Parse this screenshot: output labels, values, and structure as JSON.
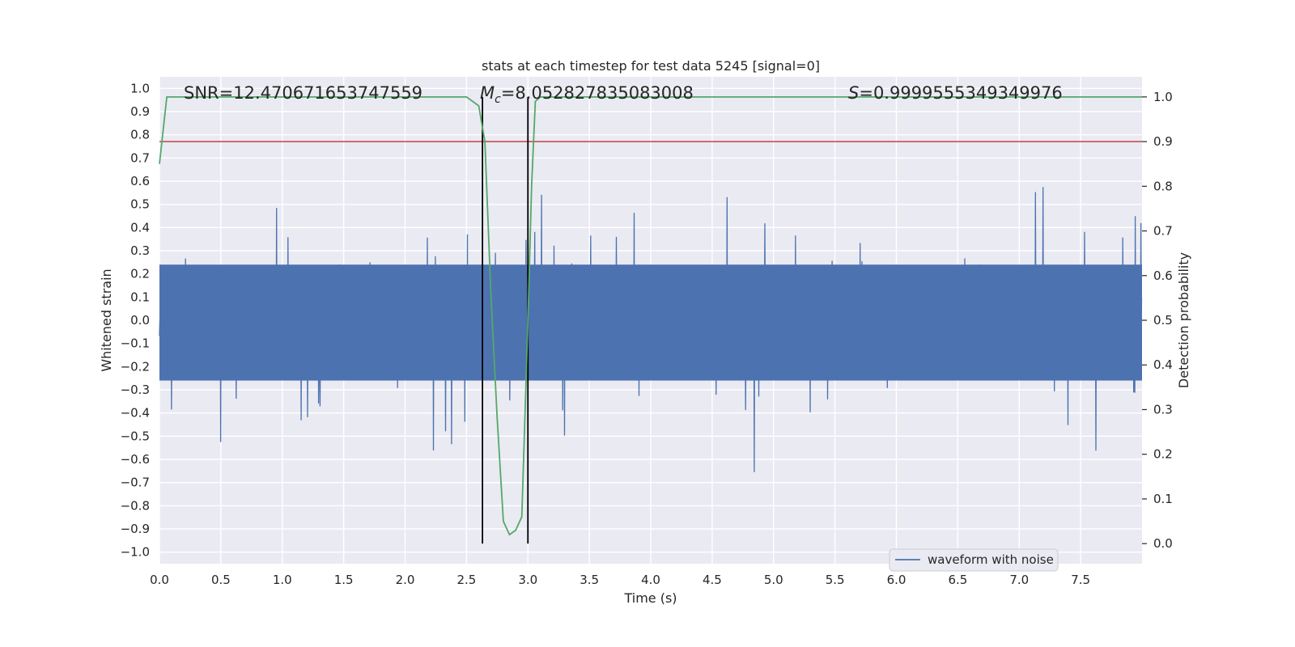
{
  "chart_data": {
    "type": "line",
    "title": "stats at each timestep for test data 5245 [signal=0]",
    "xlabel": "Time (s)",
    "ylabel": "Whitened strain",
    "y2label": "Detection probability",
    "xlim": [
      0.0,
      8.0
    ],
    "ylim": [
      -1.05,
      1.05
    ],
    "y2lim": [
      -0.045,
      1.045
    ],
    "x_ticks": [
      "0.0",
      "0.5",
      "1.0",
      "1.5",
      "2.0",
      "2.5",
      "3.0",
      "3.5",
      "4.0",
      "4.5",
      "5.0",
      "5.5",
      "6.0",
      "6.5",
      "7.0",
      "7.5"
    ],
    "y_ticks": [
      "-1.0",
      "-0.9",
      "-0.8",
      "-0.7",
      "-0.6",
      "-0.5",
      "-0.4",
      "-0.3",
      "-0.2",
      "-0.1",
      "0.0",
      "0.1",
      "0.2",
      "0.3",
      "0.4",
      "0.5",
      "0.6",
      "0.7",
      "0.8",
      "0.9",
      "1.0"
    ],
    "y2_ticks": [
      "0.0",
      "0.1",
      "0.2",
      "0.3",
      "0.4",
      "0.5",
      "0.6",
      "0.7",
      "0.8",
      "0.9",
      "1.0"
    ],
    "annotations": {
      "snr": "SNR=12.470671653747559",
      "mc_symbol": "M",
      "mc_sub": "c",
      "mc_value": "=8.052827835083008",
      "s_symbol": "S",
      "s_value": "=0.9999555349349976"
    },
    "legend": {
      "label": "waveform with noise",
      "position": "lower-right"
    },
    "grid": true,
    "series": [
      {
        "name": "waveform with noise",
        "color": "#4c72b0",
        "style": "dense noise waveform, mostly within ±0.3, spikes to about +1.0 and -0.9"
      },
      {
        "color": "#55a868",
        "axis": "right",
        "x": [
          0.0,
          0.06,
          2.4,
          2.5,
          2.55,
          2.6,
          2.65,
          2.7,
          2.75,
          2.8,
          2.85,
          2.9,
          2.95,
          3.0,
          3.03,
          3.06,
          3.1,
          8.0
        ],
        "y": [
          0.85,
          1.0,
          1.0,
          1.0,
          0.99,
          0.98,
          0.9,
          0.55,
          0.28,
          0.05,
          0.02,
          0.03,
          0.06,
          0.5,
          0.8,
          0.99,
          1.0,
          1.0
        ]
      }
    ],
    "threshold": {
      "color": "#c44e52",
      "axis": "right",
      "value": 0.9
    },
    "vlines": {
      "color": "#000000",
      "x": [
        2.63,
        3.0
      ],
      "y2_range": [
        0.0,
        1.0
      ]
    }
  }
}
